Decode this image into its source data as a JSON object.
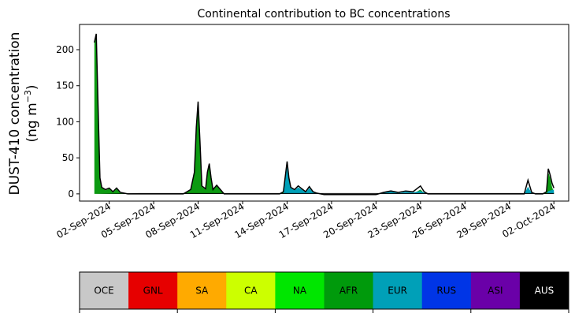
{
  "chart_data": {
    "type": "area",
    "title": "Continental contribution to BC concentrations",
    "ylabel_line1": "DUST-410 concentration",
    "ylabel_line2_prefix": "(ng m",
    "ylabel_line2_exp": "−3",
    "ylabel_line2_suffix": ")",
    "xlabel": "",
    "x_start": "2024-08-31",
    "x_end": "2024-10-03",
    "ylim": [
      -10,
      235
    ],
    "yticks": [
      0,
      50,
      100,
      150,
      200
    ],
    "xticks": [
      {
        "date": "2024-09-02",
        "label": "02-Sep-2024"
      },
      {
        "date": "2024-09-05",
        "label": "05-Sep-2024"
      },
      {
        "date": "2024-09-08",
        "label": "08-Sep-2024"
      },
      {
        "date": "2024-09-11",
        "label": "11-Sep-2024"
      },
      {
        "date": "2024-09-14",
        "label": "14-Sep-2024"
      },
      {
        "date": "2024-09-17",
        "label": "17-Sep-2024"
      },
      {
        "date": "2024-09-20",
        "label": "20-Sep-2024"
      },
      {
        "date": "2024-09-23",
        "label": "23-Sep-2024"
      },
      {
        "date": "2024-09-26",
        "label": "26-Sep-2024"
      },
      {
        "date": "2024-09-29",
        "label": "29-Sep-2024"
      },
      {
        "date": "2024-10-02",
        "label": "02-Oct-2024"
      }
    ],
    "series": [
      {
        "name": "AFR",
        "color": "#0c9a11",
        "points": [
          [
            "2024-09-01T00:00",
            210
          ],
          [
            "2024-09-01T03:00",
            220
          ],
          [
            "2024-09-01T06:00",
            120
          ],
          [
            "2024-09-01T09:00",
            20
          ],
          [
            "2024-09-01T12:00",
            8
          ],
          [
            "2024-09-01T18:00",
            5
          ],
          [
            "2024-09-02T00:00",
            7
          ],
          [
            "2024-09-02T06:00",
            2
          ],
          [
            "2024-09-02T12:00",
            7
          ],
          [
            "2024-09-02T18:00",
            1
          ],
          [
            "2024-09-03T06:00",
            -1
          ],
          [
            "2024-09-07T00:00",
            -1
          ],
          [
            "2024-09-07T12:00",
            5
          ],
          [
            "2024-09-07T18:00",
            28
          ],
          [
            "2024-09-07T21:00",
            90
          ],
          [
            "2024-09-08T00:00",
            125
          ],
          [
            "2024-09-08T03:00",
            70
          ],
          [
            "2024-09-08T06:00",
            10
          ],
          [
            "2024-09-08T12:00",
            6
          ],
          [
            "2024-09-08T15:00",
            28
          ],
          [
            "2024-09-08T18:00",
            40
          ],
          [
            "2024-09-08T21:00",
            20
          ],
          [
            "2024-09-09T00:00",
            5
          ],
          [
            "2024-09-09T06:00",
            11
          ],
          [
            "2024-09-09T12:00",
            5
          ],
          [
            "2024-09-09T18:00",
            -1
          ],
          [
            "2024-09-13T12:00",
            -1
          ],
          [
            "2024-09-13T18:00",
            2
          ],
          [
            "2024-09-14T00:00",
            6
          ],
          [
            "2024-09-14T06:00",
            1
          ],
          [
            "2024-09-14T12:00",
            -1
          ],
          [
            "2024-09-22T12:00",
            -1
          ],
          [
            "2024-09-23T00:00",
            6
          ],
          [
            "2024-09-23T06:00",
            1
          ],
          [
            "2024-09-23T12:00",
            -1
          ],
          [
            "2024-10-01T06:00",
            -1
          ],
          [
            "2024-10-01T12:00",
            2
          ],
          [
            "2024-10-01T15:00",
            30
          ],
          [
            "2024-10-01T18:00",
            22
          ],
          [
            "2024-10-01T21:00",
            10
          ],
          [
            "2024-10-02T00:00",
            2
          ]
        ]
      },
      {
        "name": "EUR",
        "color": "#00a0b8",
        "points": [
          [
            "2024-09-01T00:00",
            0
          ],
          [
            "2024-09-01T06:00",
            0
          ],
          [
            "2024-09-03T06:00",
            0
          ],
          [
            "2024-09-13T18:00",
            0
          ],
          [
            "2024-09-14T00:00",
            40
          ],
          [
            "2024-09-14T03:00",
            20
          ],
          [
            "2024-09-14T06:00",
            8
          ],
          [
            "2024-09-14T12:00",
            5
          ],
          [
            "2024-09-14T18:00",
            9
          ],
          [
            "2024-09-15T00:00",
            6
          ],
          [
            "2024-09-15T06:00",
            2
          ],
          [
            "2024-09-15T12:00",
            8
          ],
          [
            "2024-09-15T18:00",
            2
          ],
          [
            "2024-09-16T00:00",
            1
          ],
          [
            "2024-09-16T12:00",
            -1
          ],
          [
            "2024-09-20T00:00",
            -1
          ],
          [
            "2024-09-20T12:00",
            2
          ],
          [
            "2024-09-21T00:00",
            4
          ],
          [
            "2024-09-21T12:00",
            1
          ],
          [
            "2024-09-22T00:00",
            3
          ],
          [
            "2024-09-22T12:00",
            2
          ],
          [
            "2024-09-23T00:00",
            4
          ],
          [
            "2024-09-23T12:00",
            0
          ],
          [
            "2024-09-30T00:00",
            0
          ],
          [
            "2024-09-30T06:00",
            10
          ],
          [
            "2024-09-30T12:00",
            1
          ],
          [
            "2024-09-30T18:00",
            0
          ],
          [
            "2024-10-01T12:00",
            0
          ],
          [
            "2024-10-01T15:00",
            4
          ],
          [
            "2024-10-02T00:00",
            6
          ]
        ]
      },
      {
        "name": "AUS",
        "color": "#000000",
        "points": [
          [
            "2024-09-01T00:00",
            0
          ],
          [
            "2024-09-04T00:00",
            1
          ],
          [
            "2024-09-07T00:00",
            1
          ],
          [
            "2024-09-12T00:00",
            1
          ],
          [
            "2024-09-17T00:00",
            1
          ],
          [
            "2024-09-25T00:00",
            1
          ],
          [
            "2024-10-02T00:00",
            1
          ]
        ]
      }
    ],
    "total": {
      "color": "#000000",
      "points": [
        [
          "2024-09-01T00:00",
          210
        ],
        [
          "2024-09-01T03:00",
          222
        ],
        [
          "2024-09-01T06:00",
          122
        ],
        [
          "2024-09-01T09:00",
          22
        ],
        [
          "2024-09-01T12:00",
          9
        ],
        [
          "2024-09-01T18:00",
          6
        ],
        [
          "2024-09-02T00:00",
          8
        ],
        [
          "2024-09-02T06:00",
          3
        ],
        [
          "2024-09-02T12:00",
          8
        ],
        [
          "2024-09-02T18:00",
          2
        ],
        [
          "2024-09-03T06:00",
          0
        ],
        [
          "2024-09-07T00:00",
          0
        ],
        [
          "2024-09-07T12:00",
          6
        ],
        [
          "2024-09-07T18:00",
          30
        ],
        [
          "2024-09-07T21:00",
          92
        ],
        [
          "2024-09-08T00:00",
          128
        ],
        [
          "2024-09-08T03:00",
          72
        ],
        [
          "2024-09-08T06:00",
          11
        ],
        [
          "2024-09-08T12:00",
          7
        ],
        [
          "2024-09-08T15:00",
          30
        ],
        [
          "2024-09-08T18:00",
          42
        ],
        [
          "2024-09-08T21:00",
          22
        ],
        [
          "2024-09-09T00:00",
          6
        ],
        [
          "2024-09-09T06:00",
          12
        ],
        [
          "2024-09-09T12:00",
          6
        ],
        [
          "2024-09-09T18:00",
          0
        ],
        [
          "2024-09-13T12:00",
          0
        ],
        [
          "2024-09-13T18:00",
          3
        ],
        [
          "2024-09-14T00:00",
          45
        ],
        [
          "2024-09-14T03:00",
          22
        ],
        [
          "2024-09-14T06:00",
          9
        ],
        [
          "2024-09-14T12:00",
          6
        ],
        [
          "2024-09-14T18:00",
          11
        ],
        [
          "2024-09-15T00:00",
          7
        ],
        [
          "2024-09-15T06:00",
          3
        ],
        [
          "2024-09-15T12:00",
          10
        ],
        [
          "2024-09-15T18:00",
          3
        ],
        [
          "2024-09-16T00:00",
          1
        ],
        [
          "2024-09-16T12:00",
          -1
        ],
        [
          "2024-09-20T00:00",
          -1
        ],
        [
          "2024-09-20T12:00",
          2
        ],
        [
          "2024-09-21T00:00",
          4
        ],
        [
          "2024-09-21T12:00",
          2
        ],
        [
          "2024-09-22T00:00",
          4
        ],
        [
          "2024-09-22T12:00",
          3
        ],
        [
          "2024-09-23T00:00",
          11
        ],
        [
          "2024-09-23T06:00",
          3
        ],
        [
          "2024-09-23T12:00",
          0
        ],
        [
          "2024-09-30T00:00",
          0
        ],
        [
          "2024-09-30T06:00",
          19
        ],
        [
          "2024-09-30T12:00",
          2
        ],
        [
          "2024-09-30T18:00",
          0
        ],
        [
          "2024-10-01T06:00",
          0
        ],
        [
          "2024-10-01T12:00",
          3
        ],
        [
          "2024-10-01T15:00",
          35
        ],
        [
          "2024-10-01T18:00",
          26
        ],
        [
          "2024-10-01T21:00",
          15
        ],
        [
          "2024-10-02T00:00",
          8
        ]
      ]
    },
    "legend": [
      {
        "name": "OCE",
        "color": "#c8c8c8",
        "text_color": "#000000"
      },
      {
        "name": "GNL",
        "color": "#e60000",
        "text_color": "#000000"
      },
      {
        "name": "SA",
        "color": "#ffaa00",
        "text_color": "#000000"
      },
      {
        "name": "CA",
        "color": "#ccff00",
        "text_color": "#000000"
      },
      {
        "name": "NA",
        "color": "#00e600",
        "text_color": "#000000"
      },
      {
        "name": "AFR",
        "color": "#009a0c",
        "text_color": "#000000"
      },
      {
        "name": "EUR",
        "color": "#00a0b8",
        "text_color": "#000000"
      },
      {
        "name": "RUS",
        "color": "#0035e6",
        "text_color": "#000000"
      },
      {
        "name": "ASI",
        "color": "#6a00a8",
        "text_color": "#000000"
      },
      {
        "name": "AUS",
        "color": "#000000",
        "text_color": "#ffffff"
      }
    ],
    "grid": false,
    "legend_placement": "bottom"
  }
}
